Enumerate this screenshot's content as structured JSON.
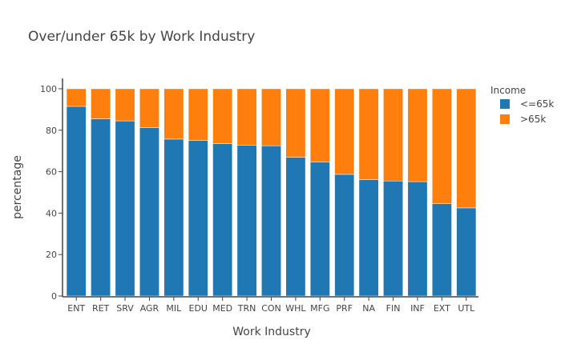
{
  "chart_data": {
    "type": "bar",
    "stacked": true,
    "title": "Over/under 65k by Work Industry",
    "xlabel": "Work Industry",
    "ylabel": "percentage",
    "ylim": [
      0,
      105
    ],
    "yticks": [
      0,
      20,
      40,
      60,
      80,
      100
    ],
    "grid": false,
    "legend_position": "top-right",
    "legend_title": "Income",
    "categories": [
      "ENT",
      "RET",
      "SRV",
      "AGR",
      "MIL",
      "EDU",
      "MED",
      "TRN",
      "CON",
      "WHL",
      "MFG",
      "PRF",
      "NA",
      "FIN",
      "INF",
      "EXT",
      "UTL"
    ],
    "series": [
      {
        "name": "<=65k",
        "color": "#1f77b4",
        "values": [
          91.5,
          85.5,
          84.5,
          81.2,
          75.7,
          75.0,
          73.5,
          72.8,
          72.5,
          67.0,
          64.7,
          58.7,
          56.2,
          55.5,
          55.2,
          44.5,
          42.5
        ]
      },
      {
        "name": ">65k",
        "color": "#ff7f0e",
        "values": [
          8.5,
          14.5,
          15.5,
          18.8,
          24.3,
          25.0,
          26.5,
          27.2,
          27.5,
          33.0,
          35.3,
          41.3,
          43.8,
          44.5,
          44.8,
          55.5,
          57.5
        ]
      }
    ]
  }
}
